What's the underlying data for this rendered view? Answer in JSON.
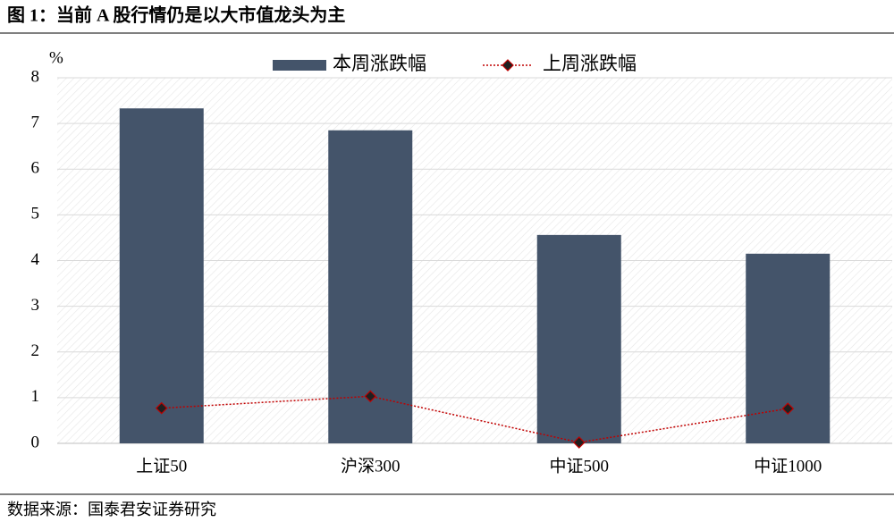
{
  "chart_data": {
    "type": "combo",
    "title": "图 1：当前 A 股行情仍是以大市值龙头为主",
    "y_unit": "%",
    "source": "数据来源：国泰君安证券研究",
    "categories": [
      "上证50",
      "沪深300",
      "中证500",
      "中证1000"
    ],
    "series": [
      {
        "name": "本周涨跌幅",
        "type": "bar",
        "color": "#44546a",
        "values": [
          7.33,
          6.85,
          4.56,
          4.15
        ]
      },
      {
        "name": "上周涨跌幅",
        "type": "line",
        "color": "#c00000",
        "marker_color": "#1f1f1f",
        "values": [
          0.77,
          1.03,
          0.02,
          0.76
        ]
      }
    ],
    "ylim": [
      0,
      8
    ],
    "yticks": [
      0,
      1,
      2,
      3,
      4,
      5,
      6,
      7,
      8
    ],
    "grid": true,
    "legend": "top"
  }
}
